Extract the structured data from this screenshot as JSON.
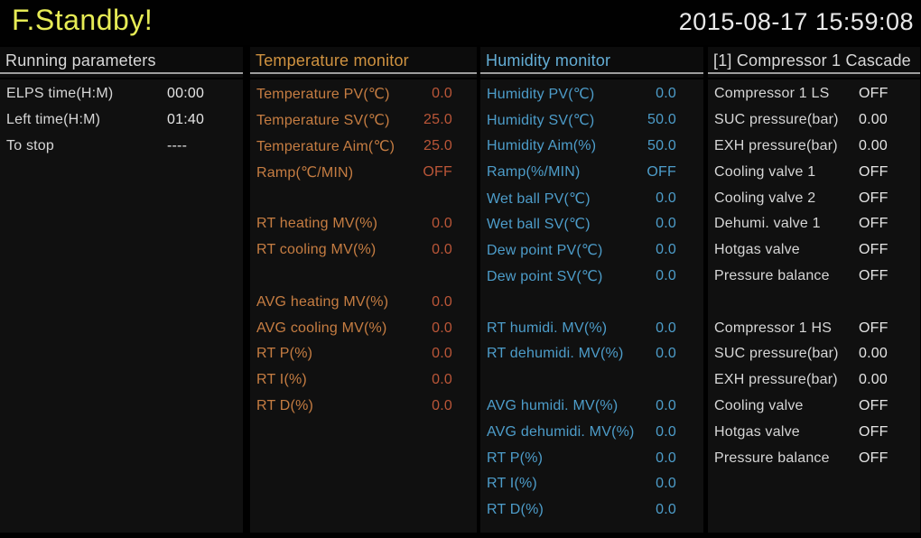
{
  "header": {
    "title": "F.Standby!",
    "datetime": "2015-08-17 15:59:08"
  },
  "colors": {
    "background": "#000000",
    "panel_background": "#101010",
    "header_underline": "#9d9d9d",
    "status_title_yellow": "#e6eb55",
    "white_text": "#d8d8d8",
    "temperature_orange_title": "#cf9240",
    "temperature_orange_label": "#c67d42",
    "temperature_red_value": "#bb5638",
    "humidity_blue": "#4d9dca"
  },
  "panels": [
    {
      "title": "Running parameters",
      "title_color": "#d8d8d8",
      "label_color": "#d6d6d6",
      "value_color": "#e4e4e4",
      "rows": [
        {
          "label": "ELPS time(H:M)",
          "value": "00:00"
        },
        {
          "label": "Left time(H:M)",
          "value": "01:40"
        },
        {
          "label": "To stop",
          "value": "----"
        }
      ]
    },
    {
      "title": "Temperature monitor",
      "title_color": "#cf9240",
      "label_color": "#c67d42",
      "value_color": "#bb5638",
      "rows": [
        {
          "label": "Temperature PV(℃)",
          "value": "0.0"
        },
        {
          "label": "Temperature SV(℃)",
          "value": "25.0"
        },
        {
          "label": "Temperature Aim(℃)",
          "value": "25.0"
        },
        {
          "label": "Ramp(℃/MIN)",
          "value": "OFF"
        },
        {
          "spacer": true
        },
        {
          "label": "RT heating MV(%)",
          "value": "0.0"
        },
        {
          "label": "RT cooling MV(%)",
          "value": "0.0"
        },
        {
          "spacer": true
        },
        {
          "label": "AVG heating MV(%)",
          "value": "0.0"
        },
        {
          "label": "AVG cooling MV(%)",
          "value": "0.0"
        },
        {
          "label": "RT P(%)",
          "value": "0.0"
        },
        {
          "label": "RT I(%)",
          "value": "0.0"
        },
        {
          "label": "RT D(%)",
          "value": "0.0"
        }
      ]
    },
    {
      "title": "Humidity monitor",
      "title_color": "#64aed6",
      "label_color": "#4d9dca",
      "value_color": "#4d9dca",
      "rows": [
        {
          "label": "Humidity PV(℃)",
          "value": "0.0"
        },
        {
          "label": "Humidity SV(℃)",
          "value": "50.0"
        },
        {
          "label": "Humidity Aim(%)",
          "value": "50.0"
        },
        {
          "label": "Ramp(%/MIN)",
          "value": "OFF"
        },
        {
          "label": "Wet ball PV(℃)",
          "value": "0.0"
        },
        {
          "label": "Wet ball SV(℃)",
          "value": "0.0"
        },
        {
          "label": "Dew point PV(℃)",
          "value": "0.0"
        },
        {
          "label": "Dew point SV(℃)",
          "value": "0.0"
        },
        {
          "spacer": true
        },
        {
          "label": "RT humidi. MV(%)",
          "value": "0.0"
        },
        {
          "label": "RT dehumidi. MV(%)",
          "value": "0.0"
        },
        {
          "spacer": true
        },
        {
          "label": "AVG humidi. MV(%)",
          "value": "0.0"
        },
        {
          "label": "AVG dehumidi. MV(%)",
          "value": "0.0"
        },
        {
          "label": "RT P(%)",
          "value": "0.0"
        },
        {
          "label": "RT I(%)",
          "value": "0.0"
        },
        {
          "label": "RT D(%)",
          "value": "0.0"
        }
      ]
    },
    {
      "title": "[1] Compressor 1 Cascade",
      "title_color": "#d8d8d8",
      "label_color": "#d6d6d6",
      "value_color": "#e4e4e4",
      "rows": [
        {
          "label": "Compressor 1 LS",
          "value": "OFF"
        },
        {
          "label": "SUC pressure(bar)",
          "value": "0.00"
        },
        {
          "label": "EXH pressure(bar)",
          "value": "0.00"
        },
        {
          "label": "Cooling valve 1",
          "value": "OFF"
        },
        {
          "label": "Cooling valve 2",
          "value": "OFF"
        },
        {
          "label": "Dehumi. valve 1",
          "value": "OFF"
        },
        {
          "label": "Hotgas valve",
          "value": "OFF"
        },
        {
          "label": "Pressure balance",
          "value": "OFF"
        },
        {
          "spacer": true
        },
        {
          "label": "Compressor 1 HS",
          "value": "OFF"
        },
        {
          "label": "SUC pressure(bar)",
          "value": "0.00"
        },
        {
          "label": "EXH pressure(bar)",
          "value": "0.00"
        },
        {
          "label": "Cooling valve",
          "value": "OFF"
        },
        {
          "label": "Hotgas valve",
          "value": "OFF"
        },
        {
          "label": "Pressure balance",
          "value": "OFF"
        }
      ]
    }
  ]
}
